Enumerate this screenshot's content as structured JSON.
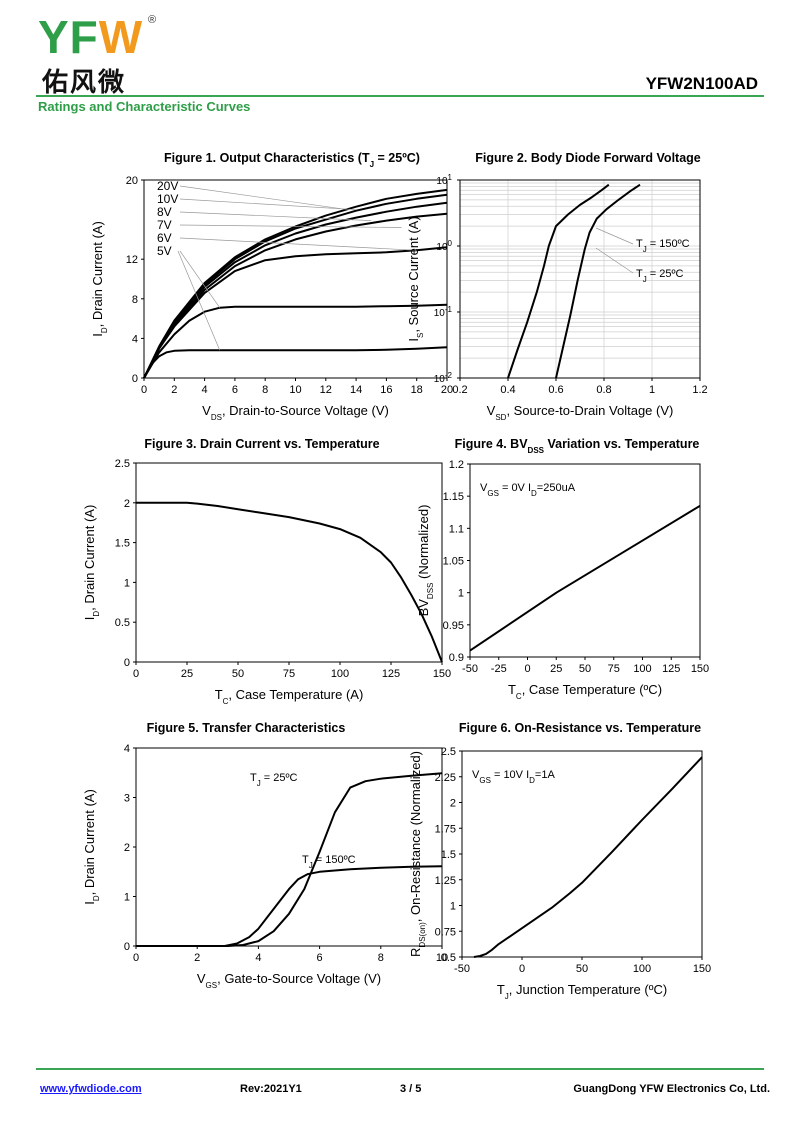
{
  "header": {
    "logo_text": "YFW",
    "logo_cn": "佑风微",
    "part_number": "YFW2N100AD",
    "subtitle": "Ratings and Characteristic Curves"
  },
  "footer": {
    "url": "www.yfwdiode.com",
    "rev": "Rev:2021Y1",
    "page": "3 / 5",
    "company": "GuangDong YFW Electronics Co, Ltd."
  },
  "chart_data": [
    {
      "id": "fig1",
      "type": "line",
      "title": "Figure 1. Output Characteristics (TJ = 25ºC)",
      "xlabel": "VDS, Drain-to-Source Voltage (V)",
      "ylabel": "ID, Drain Current (A)",
      "xlim": [
        0,
        20
      ],
      "ylim": [
        0,
        20
      ],
      "xticks": [
        0,
        2,
        4,
        6,
        8,
        10,
        12,
        14,
        16,
        18,
        20
      ],
      "yticks": [
        0,
        4,
        8,
        12,
        20
      ],
      "grid": false,
      "series": [
        {
          "name": "20V",
          "x": [
            0,
            1,
            2,
            4,
            6,
            8,
            10,
            12,
            14,
            16,
            18,
            20
          ],
          "y": [
            0,
            3.2,
            5.8,
            9.6,
            12.2,
            14.0,
            15.3,
            16.4,
            17.3,
            18.1,
            18.6,
            19.0
          ]
        },
        {
          "name": "10V",
          "x": [
            0,
            1,
            2,
            4,
            6,
            8,
            10,
            12,
            14,
            16,
            18,
            20
          ],
          "y": [
            0,
            3.1,
            5.6,
            9.4,
            12.0,
            13.8,
            15.1,
            16.0,
            16.9,
            17.6,
            18.1,
            18.5
          ]
        },
        {
          "name": "8V",
          "x": [
            0,
            1,
            2,
            4,
            6,
            8,
            10,
            12,
            14,
            16,
            18,
            20
          ],
          "y": [
            0,
            3.0,
            5.5,
            9.2,
            11.7,
            13.4,
            14.6,
            15.5,
            16.2,
            16.8,
            17.3,
            17.7
          ]
        },
        {
          "name": "7V",
          "x": [
            0,
            1,
            2,
            4,
            6,
            8,
            10,
            12,
            14,
            16,
            18,
            20
          ],
          "y": [
            0,
            3.0,
            5.3,
            8.9,
            11.3,
            12.9,
            14.0,
            14.8,
            15.4,
            15.9,
            16.3,
            16.6
          ]
        },
        {
          "name": "6V",
          "x": [
            0,
            1,
            2,
            4,
            6,
            8,
            10,
            12,
            14,
            16,
            18,
            20
          ],
          "y": [
            0,
            3.0,
            5.2,
            8.6,
            10.8,
            11.9,
            12.3,
            12.5,
            12.6,
            12.7,
            12.9,
            13.2
          ]
        },
        {
          "name": "5V",
          "x": [
            0,
            1,
            2,
            3,
            4,
            5,
            6,
            8,
            10,
            12,
            14,
            16,
            18,
            20
          ],
          "y": [
            0,
            2.6,
            4.4,
            5.8,
            6.7,
            7.1,
            7.2,
            7.2,
            7.2,
            7.2,
            7.2,
            7.25,
            7.3,
            7.4
          ]
        },
        {
          "name": "",
          "x": [
            0,
            0.5,
            1,
            1.5,
            2,
            3,
            5,
            8,
            10,
            12,
            14,
            16,
            18,
            20
          ],
          "y": [
            0,
            1.4,
            2.2,
            2.6,
            2.75,
            2.8,
            2.8,
            2.8,
            2.8,
            2.8,
            2.8,
            2.85,
            2.95,
            3.1
          ]
        }
      ]
    },
    {
      "id": "fig2",
      "type": "line",
      "title": "Figure 2. Body Diode Forward Voltage",
      "xlabel": "VSD, Source-to-Drain Voltage (V)",
      "ylabel": "IS, Source Current (A)",
      "xlim": [
        0.2,
        1.2
      ],
      "ylim": [
        0.01,
        10
      ],
      "yscale": "log",
      "xticks": [
        0.2,
        0.4,
        0.6,
        0.8,
        1.0,
        1.2
      ],
      "yticks": [
        "10-2",
        "10-1",
        "100",
        "101"
      ],
      "grid": true,
      "series": [
        {
          "name": "TJ = 150ºC",
          "x": [
            0.4,
            0.44,
            0.48,
            0.52,
            0.55,
            0.57,
            0.6,
            0.65,
            0.7,
            0.75,
            0.79,
            0.82
          ],
          "y": [
            0.01,
            0.027,
            0.07,
            0.2,
            0.5,
            1.0,
            2.0,
            3.0,
            4.2,
            5.5,
            7.0,
            8.5
          ]
        },
        {
          "name": "TJ = 25ºC",
          "x": [
            0.6,
            0.63,
            0.66,
            0.69,
            0.72,
            0.74,
            0.77,
            0.81,
            0.86,
            0.91,
            0.95
          ],
          "y": [
            0.01,
            0.03,
            0.09,
            0.3,
            0.9,
            1.6,
            2.6,
            3.6,
            5.0,
            6.8,
            8.5
          ]
        }
      ]
    },
    {
      "id": "fig3",
      "type": "line",
      "title": "Figure 3. Drain Current vs. Temperature",
      "xlabel": "TC, Case Temperature (A)",
      "ylabel": "ID, Drain Current (A)",
      "xlim": [
        0,
        150
      ],
      "ylim": [
        0,
        2.5
      ],
      "xticks": [
        0,
        25,
        50,
        75,
        100,
        125,
        150
      ],
      "yticks": [
        0,
        0.5,
        1,
        1.5,
        2,
        2.5
      ],
      "grid": false,
      "series": [
        {
          "name": "",
          "x": [
            0,
            10,
            20,
            25,
            30,
            40,
            50,
            60,
            75,
            90,
            100,
            110,
            120,
            125,
            130,
            135,
            140,
            145,
            150
          ],
          "y": [
            2.0,
            2.0,
            2.0,
            2.0,
            1.99,
            1.96,
            1.92,
            1.88,
            1.82,
            1.74,
            1.67,
            1.56,
            1.38,
            1.25,
            1.06,
            0.84,
            0.6,
            0.32,
            0.0
          ]
        }
      ]
    },
    {
      "id": "fig4",
      "type": "line",
      "title": "Figure 4. BVDSS Variation vs. Temperature",
      "xlabel": "TC, Case Temperature (ºC)",
      "ylabel": "BVDSS (Normalized)",
      "xlim": [
        -50,
        150
      ],
      "ylim": [
        0.9,
        1.2
      ],
      "xticks": [
        -50,
        -25,
        0,
        25,
        50,
        75,
        100,
        125,
        150
      ],
      "yticks": [
        0.9,
        0.95,
        1,
        1.05,
        1.1,
        1.15,
        1.2
      ],
      "grid": false,
      "annotation": "VGS = 0V ID=250uA",
      "series": [
        {
          "name": "",
          "x": [
            -50,
            25,
            150
          ],
          "y": [
            0.91,
            1.0,
            1.135
          ]
        }
      ]
    },
    {
      "id": "fig5",
      "type": "line",
      "title": "Figure 5. Transfer Characteristics",
      "xlabel": "VGS, Gate-to-Source Voltage (V)",
      "ylabel": "ID, Drain Current (A)",
      "xlim": [
        0,
        10
      ],
      "ylim": [
        0,
        4
      ],
      "xticks": [
        0,
        2,
        4,
        6,
        8,
        10
      ],
      "yticks": [
        0,
        1,
        2,
        3,
        4
      ],
      "grid": false,
      "series": [
        {
          "name": "TJ = 25ºC",
          "x": [
            0,
            2,
            3,
            3.5,
            4,
            4.5,
            5,
            5.5,
            6,
            6.5,
            7,
            7.5,
            8,
            9,
            10
          ],
          "y": [
            0,
            0,
            0,
            0.02,
            0.1,
            0.3,
            0.65,
            1.15,
            1.9,
            2.7,
            3.2,
            3.33,
            3.38,
            3.44,
            3.49
          ]
        },
        {
          "name": "TJ = 150ºC",
          "x": [
            0,
            2,
            2.9,
            3.3,
            3.7,
            4,
            4.5,
            5,
            5.3,
            5.6,
            6,
            7,
            8,
            9,
            10
          ],
          "y": [
            0,
            0,
            0,
            0.05,
            0.18,
            0.35,
            0.75,
            1.15,
            1.35,
            1.45,
            1.5,
            1.55,
            1.58,
            1.6,
            1.61
          ]
        }
      ]
    },
    {
      "id": "fig6",
      "type": "line",
      "title": "Figure 6. On-Resistance vs. Temperature",
      "xlabel": "TJ, Junction Temperature (ºC)",
      "ylabel": "RDS(on), On-Resistance (Normalized)",
      "xlim": [
        -50,
        150
      ],
      "ylim": [
        0.5,
        2.5
      ],
      "xticks": [
        -50,
        0,
        50,
        100,
        150
      ],
      "yticks": [
        0.5,
        0.75,
        1,
        1.25,
        1.5,
        1.75,
        2,
        2.25,
        2.5
      ],
      "grid": false,
      "annotation": "VGS = 10V ID=1A",
      "series": [
        {
          "name": "",
          "x": [
            -40,
            -35,
            -30,
            -25,
            -20,
            -10,
            0,
            10,
            25,
            40,
            50,
            75,
            100,
            125,
            150
          ],
          "y": [
            0.5,
            0.51,
            0.53,
            0.57,
            0.62,
            0.7,
            0.78,
            0.86,
            0.98,
            1.12,
            1.22,
            1.52,
            1.83,
            2.13,
            2.44
          ]
        }
      ]
    }
  ]
}
